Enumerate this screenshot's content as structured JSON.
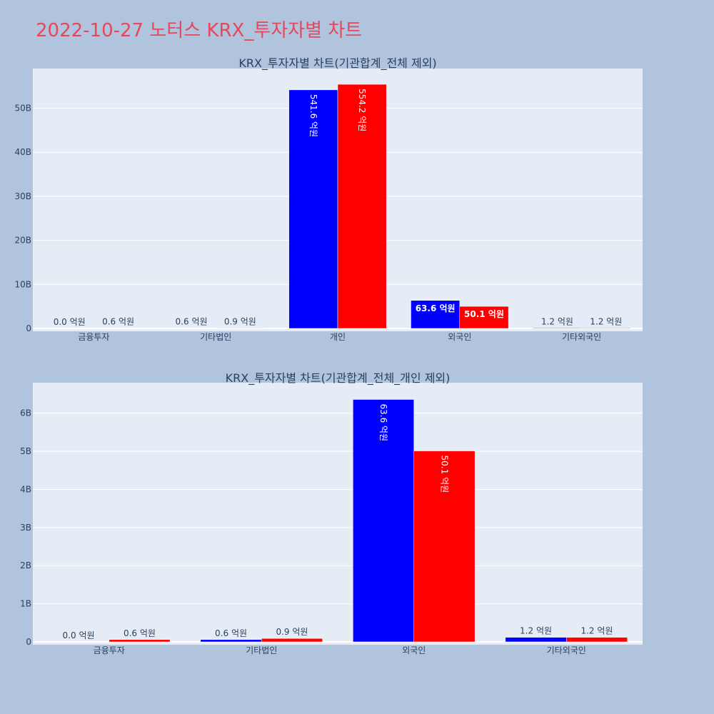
{
  "page": {
    "title": "2022-10-27 노터스 KRX_투자자별 차트",
    "title_color": "#e5475c",
    "background": "#b0c4de",
    "plot_background": "#e5ecf6"
  },
  "chart_data": [
    {
      "type": "bar",
      "title": "KRX_투자자별 차트(기관합계_전체 제외)",
      "categories": [
        "금융투자",
        "기타법인",
        "개인",
        "외국인",
        "기타외국인"
      ],
      "ylim": [
        0,
        59000000000
      ],
      "yticks": [
        0,
        10000000000,
        20000000000,
        30000000000,
        40000000000,
        50000000000
      ],
      "ytick_labels": [
        "0",
        "10B",
        "20B",
        "30B",
        "40B",
        "50B"
      ],
      "grid": true,
      "series": [
        {
          "color": "#0000ff",
          "values": [
            0,
            60000000,
            54160000000,
            6360000000,
            120000000
          ],
          "labels": [
            "0.0 억원",
            "0.6 억원",
            "541.6 억원",
            "63.6 억원",
            "1.2 억원"
          ]
        },
        {
          "color": "#ff0000",
          "values": [
            60000000,
            90000000,
            55420000000,
            5010000000,
            120000000
          ],
          "labels": [
            "0.6 억원",
            "0.9 억원",
            "554.2 억원",
            "50.1 억원",
            "1.2 억원"
          ]
        }
      ]
    },
    {
      "type": "bar",
      "title": "KRX_투자자별 차트(기관합계_전체_개인 제외)",
      "categories": [
        "금융투자",
        "기타법인",
        "외국인",
        "기타외국인"
      ],
      "ylim": [
        0,
        6800000000
      ],
      "yticks": [
        0,
        1000000000,
        2000000000,
        3000000000,
        4000000000,
        5000000000,
        6000000000
      ],
      "ytick_labels": [
        "0",
        "1B",
        "2B",
        "3B",
        "4B",
        "5B",
        "6B"
      ],
      "grid": true,
      "series": [
        {
          "color": "#0000ff",
          "values": [
            0,
            60000000,
            6360000000,
            120000000
          ],
          "labels": [
            "0.0 억원",
            "0.6 억원",
            "63.6 억원",
            "1.2 억원"
          ]
        },
        {
          "color": "#ff0000",
          "values": [
            60000000,
            90000000,
            5010000000,
            120000000
          ],
          "labels": [
            "0.6 억원",
            "0.9 억원",
            "50.1 억원",
            "1.2 억원"
          ]
        }
      ]
    }
  ]
}
